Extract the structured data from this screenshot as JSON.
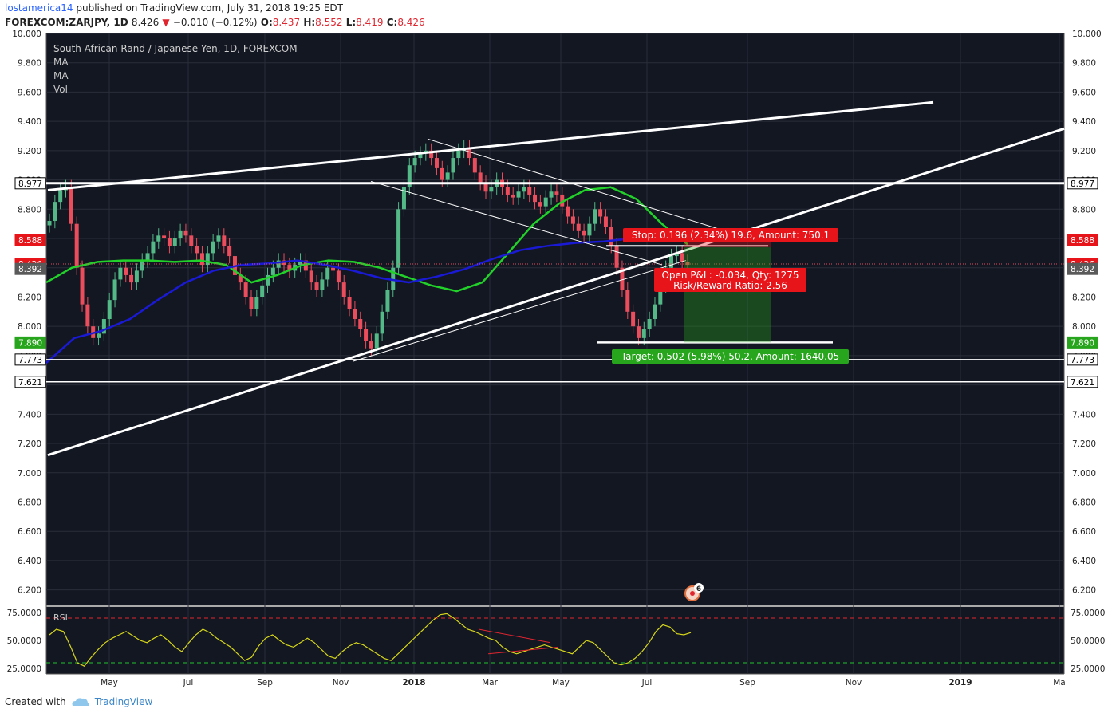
{
  "header": {
    "user": "lostamerica14",
    "published": "published on TradingView.com, July 31, 2018 19:25 EDT",
    "symbol": "FOREXCOM:ZARJPY",
    "interval": ", 1D",
    "last": "8.426",
    "change": "−0.010 (−0.12%)",
    "o_label": "O:",
    "o_val": "8.437",
    "h_label": "H:",
    "h_val": "8.552",
    "l_label": "L:",
    "l_val": "8.419",
    "c_label": "C:",
    "c_val": "8.426"
  },
  "legend": {
    "title": "South African Rand / Japanese Yen, 1D, FOREXCOM",
    "ma1": "MA",
    "ma2": "MA",
    "vol": "Vol"
  },
  "rsi_label": "RSI",
  "footer": {
    "created": "Created with",
    "brand": "TradingView"
  },
  "colors": {
    "bg": "#131722",
    "up": "#53b987",
    "down": "#eb4d5c",
    "ma_green": "#22d12a",
    "ma_blue": "#1a1ad6",
    "rsi": "#d6d61a",
    "stop": "#e7141a",
    "target": "#27a51c"
  },
  "chart_data": [
    {
      "type": "candlestick",
      "title": "South African Rand / Japanese Yen, 1D, FOREXCOM",
      "ylim": [
        6.1,
        10.0
      ],
      "y_ticks": [
        "10.000",
        "9.800",
        "9.600",
        "9.400",
        "9.200",
        "9.000",
        "8.800",
        "8.600",
        "8.400",
        "8.200",
        "8.000",
        "7.800",
        "7.600",
        "7.400",
        "7.200",
        "7.000",
        "6.800",
        "6.600",
        "6.400",
        "6.200"
      ],
      "x_ticks": [
        "May",
        "Jul",
        "Sep",
        "Nov",
        "2018",
        "Mar",
        "May",
        "Jul",
        "Sep",
        "Nov",
        "2019",
        "Ma"
      ],
      "price_labels": [
        {
          "value": 8.977,
          "text": "8.977",
          "style": "white"
        },
        {
          "value": 8.588,
          "text": "8.588",
          "style": "red"
        },
        {
          "value": 8.426,
          "text": "8.426",
          "style": "red"
        },
        {
          "value": 8.392,
          "text": "8.392",
          "style": "gray"
        },
        {
          "value": 7.89,
          "text": "7.890",
          "style": "green"
        },
        {
          "value": 7.773,
          "text": "7.773",
          "style": "white"
        },
        {
          "value": 7.621,
          "text": "7.621",
          "style": "white"
        }
      ],
      "close_series": [
        8.72,
        8.85,
        8.93,
        8.95,
        8.7,
        8.4,
        8.15,
        8.0,
        7.92,
        7.95,
        8.05,
        8.18,
        8.32,
        8.4,
        8.35,
        8.3,
        8.38,
        8.45,
        8.5,
        8.58,
        8.62,
        8.6,
        8.55,
        8.6,
        8.65,
        8.62,
        8.55,
        8.5,
        8.42,
        8.5,
        8.58,
        8.62,
        8.55,
        8.48,
        8.35,
        8.3,
        8.2,
        8.12,
        8.2,
        8.28,
        8.35,
        8.4,
        8.45,
        8.42,
        8.38,
        8.42,
        8.45,
        8.38,
        8.3,
        8.25,
        8.32,
        8.4,
        8.38,
        8.3,
        8.2,
        8.12,
        8.05,
        7.98,
        7.9,
        7.85,
        7.95,
        8.1,
        8.25,
        8.4,
        8.8,
        8.95,
        9.1,
        9.15,
        9.18,
        9.2,
        9.15,
        9.08,
        9.0,
        9.05,
        9.15,
        9.2,
        9.22,
        9.15,
        9.05,
        8.98,
        8.92,
        8.95,
        9.0,
        8.95,
        8.9,
        8.88,
        8.92,
        8.95,
        8.9,
        8.85,
        8.82,
        8.88,
        8.92,
        8.9,
        8.82,
        8.75,
        8.7,
        8.65,
        8.62,
        8.7,
        8.8,
        8.75,
        8.68,
        8.55,
        8.4,
        8.25,
        8.1,
        8.0,
        7.92,
        7.98,
        8.05,
        8.15,
        8.28,
        8.4,
        8.48,
        8.5,
        8.44,
        8.42
      ],
      "ma50": [
        8.3,
        8.4,
        8.44,
        8.45,
        8.45,
        8.44,
        8.45,
        8.42,
        8.3,
        8.35,
        8.42,
        8.45,
        8.44,
        8.4,
        8.34,
        8.28,
        8.24,
        8.3,
        8.5,
        8.7,
        8.84,
        8.93,
        8.95,
        8.87,
        8.7,
        8.56
      ],
      "ma200": [
        7.75,
        7.92,
        7.97,
        8.05,
        8.18,
        8.3,
        8.38,
        8.42,
        8.43,
        8.45,
        8.42,
        8.38,
        8.33,
        8.3,
        8.34,
        8.39,
        8.46,
        8.52,
        8.55,
        8.57,
        8.58,
        8.6,
        8.61,
        8.62
      ],
      "trendlines": [
        {
          "from": [
            8.93,
            "Apr 2017"
          ],
          "to": [
            9.53,
            "Dec 2018"
          ]
        },
        {
          "from": [
            7.12,
            "Apr 2017"
          ],
          "to": [
            9.35,
            "Mar 2019"
          ]
        }
      ],
      "position": {
        "entry": 8.54,
        "stop_price": 8.588,
        "target_price": 7.89,
        "stop_text": "Stop: 0.196 (2.34%) 19.6, Amount: 750.1",
        "pnl_text": "Open P&L: -0.034, Qty: 1275",
        "rr_text": "Risk/Reward Ratio: 2.56",
        "target_text": "Target: 0.502 (5.98%) 50.2, Amount: 1640.05"
      },
      "marker": "6"
    },
    {
      "type": "line",
      "title": "RSI",
      "ylim": [
        20,
        80
      ],
      "y_ticks": [
        "75.0000",
        "50.0000",
        "25.0000"
      ],
      "bands": [
        70,
        30
      ],
      "values": [
        55,
        60,
        58,
        45,
        30,
        27,
        35,
        42,
        48,
        52,
        55,
        58,
        54,
        50,
        48,
        52,
        55,
        50,
        44,
        40,
        48,
        55,
        60,
        57,
        52,
        48,
        44,
        38,
        32,
        35,
        45,
        52,
        55,
        50,
        46,
        44,
        48,
        52,
        48,
        42,
        36,
        34,
        40,
        45,
        48,
        46,
        42,
        38,
        34,
        32,
        38,
        44,
        50,
        56,
        62,
        68,
        73,
        74,
        70,
        65,
        60,
        58,
        55,
        52,
        50,
        44,
        40,
        38,
        40,
        42,
        44,
        46,
        44,
        42,
        40,
        38,
        44,
        50,
        48,
        42,
        36,
        30,
        28,
        30,
        34,
        40,
        48,
        58,
        64,
        62,
        56,
        55,
        57
      ]
    }
  ]
}
